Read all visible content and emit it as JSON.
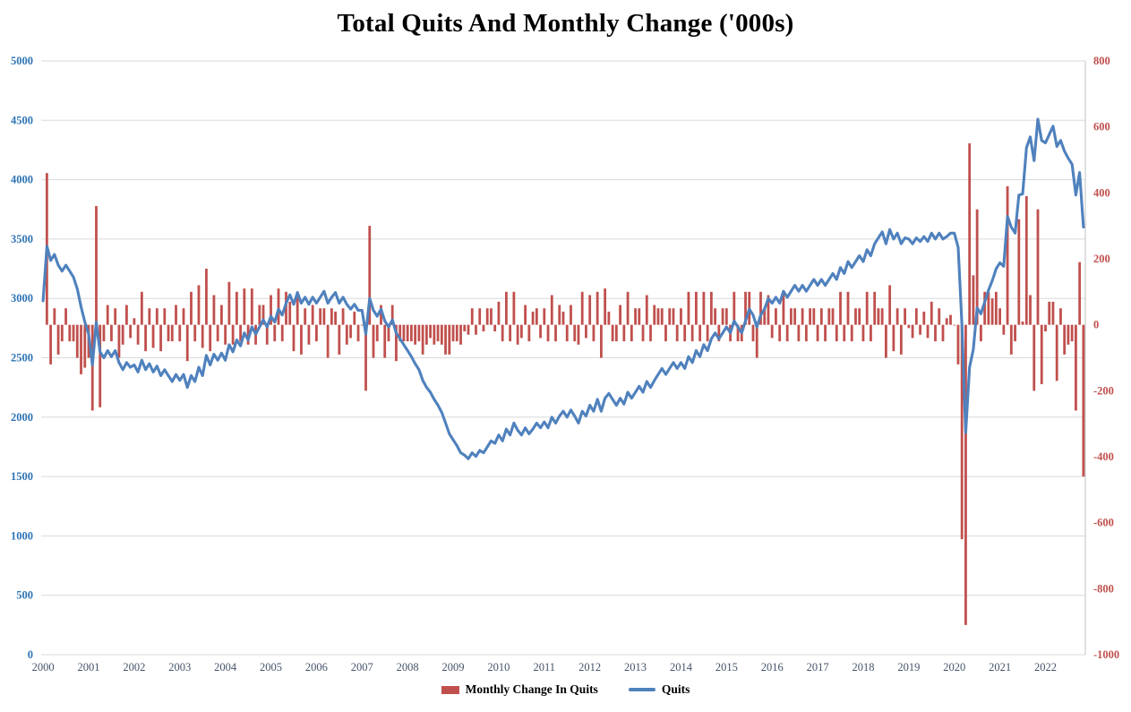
{
  "chart_data": {
    "type": "combo",
    "title": "Total Quits And Monthly Change ('000s)",
    "x_start": "2000-01",
    "x_frequency": "monthly",
    "x_ticks": [
      "2000",
      "2001",
      "2002",
      "2003",
      "2004",
      "2005",
      "2006",
      "2007",
      "2008",
      "2009",
      "2010",
      "2011",
      "2012",
      "2013",
      "2014",
      "2015",
      "2016",
      "2017",
      "2018",
      "2019",
      "2020",
      "2021",
      "2022"
    ],
    "x_tick_color": "#44546A",
    "grid": "horizontal",
    "grid_color": "#D9D9D9",
    "legend_position": "bottom",
    "left_axis": {
      "series": "Quits",
      "min": 0,
      "max": 5000,
      "ticks": [
        0,
        500,
        1000,
        1500,
        2000,
        2500,
        3000,
        3500,
        4000,
        4500,
        5000
      ],
      "color": "#2E74B5"
    },
    "right_axis": {
      "series": "Monthly Change In Quits",
      "min": -1000,
      "max": 800,
      "ticks": [
        -1000,
        -800,
        -600,
        -400,
        -200,
        0,
        200,
        400,
        600,
        800
      ],
      "color": "#C0504D"
    },
    "series": [
      {
        "name": "Monthly Change In Quits",
        "type": "bar",
        "axis": "right",
        "color": "#C0504D",
        "derivation": "first difference of the Quits monthly values"
      },
      {
        "name": "Quits",
        "type": "line",
        "axis": "left",
        "color": "#4F81BD",
        "values": [
          2980,
          3440,
          3320,
          3370,
          3280,
          3230,
          3280,
          3230,
          3180,
          3080,
          2930,
          2800,
          2700,
          2440,
          2800,
          2550,
          2500,
          2560,
          2510,
          2560,
          2460,
          2400,
          2460,
          2420,
          2440,
          2380,
          2480,
          2400,
          2450,
          2380,
          2430,
          2350,
          2400,
          2350,
          2300,
          2360,
          2310,
          2360,
          2250,
          2350,
          2300,
          2420,
          2350,
          2520,
          2440,
          2530,
          2480,
          2540,
          2480,
          2610,
          2550,
          2650,
          2600,
          2710,
          2650,
          2760,
          2700,
          2760,
          2820,
          2760,
          2850,
          2800,
          2910,
          2860,
          2960,
          3030,
          2950,
          3050,
          2960,
          3010,
          2950,
          3010,
          2960,
          3010,
          3060,
          2960,
          3010,
          3050,
          2960,
          3010,
          2950,
          2910,
          2950,
          2900,
          2900,
          2700,
          3000,
          2900,
          2850,
          2910,
          2810,
          2760,
          2820,
          2710,
          2660,
          2610,
          2560,
          2510,
          2450,
          2400,
          2310,
          2250,
          2210,
          2150,
          2100,
          2040,
          1950,
          1860,
          1810,
          1760,
          1700,
          1680,
          1650,
          1700,
          1670,
          1720,
          1700,
          1750,
          1800,
          1780,
          1850,
          1800,
          1900,
          1850,
          1950,
          1890,
          1850,
          1910,
          1860,
          1900,
          1950,
          1910,
          1960,
          1910,
          2000,
          1950,
          2010,
          2050,
          2000,
          2060,
          2010,
          1950,
          2050,
          2010,
          2100,
          2050,
          2150,
          2050,
          2160,
          2200,
          2150,
          2100,
          2160,
          2110,
          2210,
          2160,
          2210,
          2260,
          2210,
          2300,
          2250,
          2310,
          2360,
          2410,
          2360,
          2410,
          2460,
          2410,
          2460,
          2410,
          2510,
          2460,
          2560,
          2510,
          2610,
          2560,
          2660,
          2710,
          2660,
          2710,
          2760,
          2710,
          2810,
          2760,
          2710,
          2810,
          2910,
          2860,
          2760,
          2860,
          2910,
          3000,
          2960,
          3010,
          2960,
          3060,
          3010,
          3060,
          3110,
          3060,
          3110,
          3060,
          3110,
          3160,
          3110,
          3160,
          3110,
          3160,
          3210,
          3160,
          3260,
          3210,
          3310,
          3260,
          3310,
          3360,
          3310,
          3410,
          3360,
          3460,
          3510,
          3560,
          3460,
          3580,
          3500,
          3550,
          3460,
          3510,
          3500,
          3460,
          3510,
          3480,
          3520,
          3480,
          3550,
          3500,
          3550,
          3500,
          3520,
          3550,
          3550,
          3430,
          2780,
          1870,
          2420,
          2570,
          2920,
          2870,
          2970,
          3070,
          3150,
          3250,
          3300,
          3270,
          3690,
          3600,
          3550,
          3870,
          3880,
          4270,
          4360,
          4160,
          4510,
          4330,
          4310,
          4380,
          4450,
          4280,
          4330,
          4240,
          4180,
          4130,
          3870,
          4060,
          3600
        ]
      }
    ]
  }
}
